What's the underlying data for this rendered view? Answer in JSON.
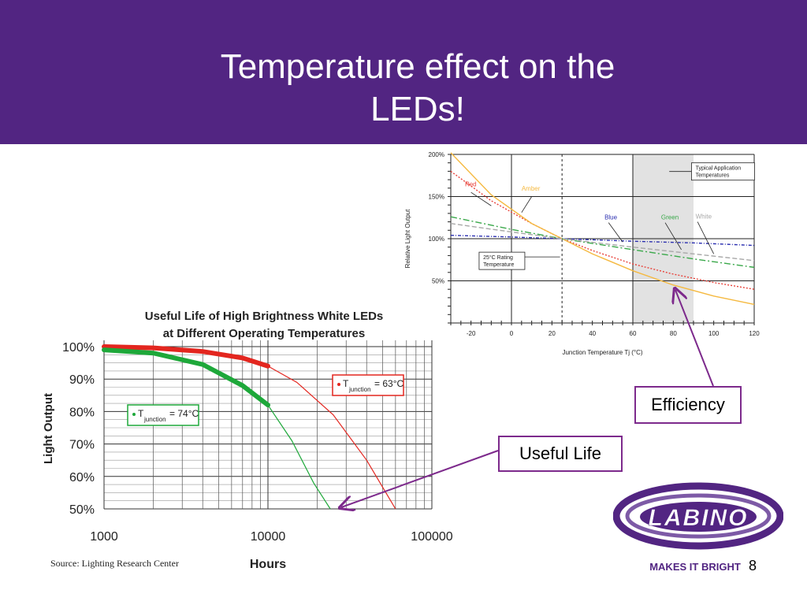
{
  "slide": {
    "title_line1": "Temperature effect on the",
    "title_line2": "LEDs!",
    "page_number": "8",
    "source": "Source: Lighting Research Center",
    "callout_efficiency": "Efficiency",
    "callout_useful_life": "Useful Life",
    "logo_text": "LABINO",
    "logo_tagline": "MAKES IT BRIGHT",
    "colors": {
      "header": "#522582",
      "callout_border": "#7d2a8c"
    }
  },
  "chart_data": [
    {
      "type": "line",
      "title": "Useful Life of High Brightness White LEDs at Different Operating Temperatures",
      "title_line1": "Useful Life of High Brightness White LEDs",
      "title_line2": "at Different Operating Temperatures",
      "xlabel": "Hours",
      "ylabel": "Light Output",
      "x_scale": "log",
      "xlim": [
        1000,
        100000
      ],
      "ylim": [
        50,
        100
      ],
      "x_ticks": [
        "1000",
        "10000",
        "100000"
      ],
      "y_ticks": [
        "100%",
        "90%",
        "80%",
        "70%",
        "60%",
        "50%"
      ],
      "grid": true,
      "series": [
        {
          "name": "Tjunction = 63°C",
          "label_main": "T",
          "label_sub": "junction",
          "label_rest": " = 63°C",
          "color": "#e3261f",
          "x": [
            1000,
            2000,
            4000,
            7000,
            10000,
            15000,
            25000,
            40000,
            60000
          ],
          "y": [
            100,
            99.6,
            98.5,
            96.5,
            94,
            89,
            79,
            65,
            50
          ]
        },
        {
          "name": "Tjunction = 74°C",
          "label_main": "T",
          "label_sub": "junction",
          "label_rest": " = 74°C",
          "color": "#1ea83a",
          "x": [
            1000,
            2000,
            4000,
            7000,
            10000,
            14000,
            19000,
            24000
          ],
          "y": [
            99,
            98,
            94.5,
            88,
            82,
            71,
            58,
            50
          ]
        }
      ]
    },
    {
      "type": "line",
      "xlabel": "Junction Temperature Tj (°C)",
      "ylabel": "Relative Light Output",
      "xlim": [
        -30,
        120
      ],
      "ylim": [
        0,
        200
      ],
      "x_ticks": [
        "-20",
        "0",
        "20",
        "40",
        "60",
        "80",
        "100",
        "120"
      ],
      "y_ticks": [
        "200%",
        "150%",
        "100%",
        "50%"
      ],
      "grid": true,
      "annotations": [
        "Typical Application Temperatures",
        "25°C Rating Temperature"
      ],
      "typical_range": [
        60,
        90
      ],
      "series": [
        {
          "name": "Red",
          "color": "#e8423a",
          "x": [
            -30,
            -10,
            10,
            25,
            40,
            60,
            80,
            100,
            120
          ],
          "y": [
            180,
            145,
            118,
            100,
            86,
            70,
            58,
            48,
            40
          ]
        },
        {
          "name": "Amber",
          "color": "#f5b940",
          "x": [
            -30,
            -10,
            10,
            25,
            40,
            60,
            80,
            100,
            120
          ],
          "y": [
            205,
            152,
            118,
            100,
            82,
            62,
            45,
            32,
            22
          ]
        },
        {
          "name": "Blue",
          "color": "#2b2fb0",
          "x": [
            -30,
            0,
            25,
            60,
            90,
            120
          ],
          "y": [
            104,
            102,
            100,
            97,
            95,
            92
          ]
        },
        {
          "name": "Green",
          "color": "#3aa84a",
          "x": [
            -30,
            0,
            25,
            60,
            90,
            120
          ],
          "y": [
            126,
            111,
            100,
            87,
            76,
            66
          ]
        },
        {
          "name": "White",
          "color": "#a8a8a8",
          "x": [
            -30,
            0,
            25,
            60,
            90,
            120
          ],
          "y": [
            118,
            108,
            100,
            90,
            82,
            74
          ]
        }
      ]
    }
  ]
}
